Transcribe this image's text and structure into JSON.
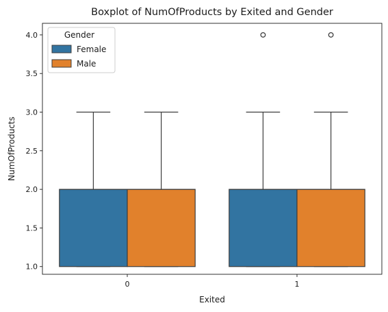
{
  "chart_data": {
    "type": "boxplot",
    "title": "Boxplot of NumOfProducts by Exited and Gender",
    "xlabel": "Exited",
    "ylabel": "NumOfProducts",
    "categories": [
      "0",
      "1"
    ],
    "ylim": [
      0.9,
      4.15
    ],
    "yticks": [
      1.0,
      1.5,
      2.0,
      2.5,
      3.0,
      3.5,
      4.0
    ],
    "ytick_labels": [
      "1.0",
      "1.5",
      "2.0",
      "2.5",
      "3.0",
      "3.5",
      "4.0"
    ],
    "grid": false,
    "legend": {
      "title": "Gender",
      "placement": "top-left"
    },
    "series": [
      {
        "name": "Female",
        "color": "#3274a1",
        "boxes": [
          {
            "category": "0",
            "min": 1.0,
            "q1": 1.0,
            "median": 2.0,
            "q3": 2.0,
            "max": 3.0,
            "outliers": []
          },
          {
            "category": "1",
            "min": 1.0,
            "q1": 1.0,
            "median": 2.0,
            "q3": 2.0,
            "max": 3.0,
            "outliers": [
              4.0
            ]
          }
        ]
      },
      {
        "name": "Male",
        "color": "#e1812c",
        "boxes": [
          {
            "category": "0",
            "min": 1.0,
            "q1": 1.0,
            "median": 2.0,
            "q3": 2.0,
            "max": 3.0,
            "outliers": []
          },
          {
            "category": "1",
            "min": 1.0,
            "q1": 1.0,
            "median": 2.0,
            "q3": 2.0,
            "max": 3.0,
            "outliers": [
              4.0
            ]
          }
        ]
      }
    ]
  }
}
